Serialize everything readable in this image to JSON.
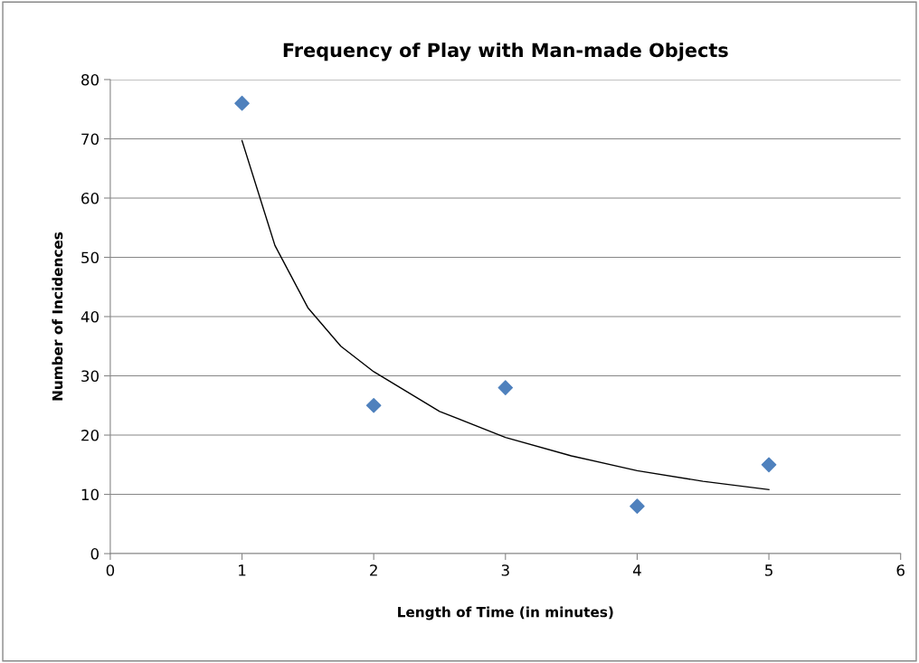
{
  "chart_data": {
    "type": "scatter",
    "title": "Frequency of Play with Man-made Objects",
    "xlabel": "Length of Time (in minutes)",
    "ylabel": "Number of Incidences",
    "series": [
      {
        "color": "#4f81bd",
        "marker": "diamond",
        "x": [
          1,
          2,
          3,
          4,
          5
        ],
        "values": [
          76,
          25,
          28,
          8,
          15
        ]
      },
      {
        "type": "line",
        "color": "#000000",
        "marker": "none",
        "line_style": "solid",
        "x": [
          1,
          1.25,
          1.5,
          1.75,
          2,
          2.5,
          3,
          3.5,
          4,
          4.5,
          5
        ],
        "values": [
          69.7,
          52,
          41.5,
          35,
          30.7,
          24,
          19.6,
          16.5,
          14,
          12.2,
          10.8
        ]
      }
    ],
    "xlim": [
      0,
      6
    ],
    "xticks": [
      0,
      1,
      2,
      3,
      4,
      5,
      6
    ],
    "ylim": [
      0,
      80
    ],
    "yticks": [
      0,
      10,
      20,
      30,
      40,
      50,
      60,
      70,
      80
    ],
    "grid": "y",
    "legend": false
  }
}
